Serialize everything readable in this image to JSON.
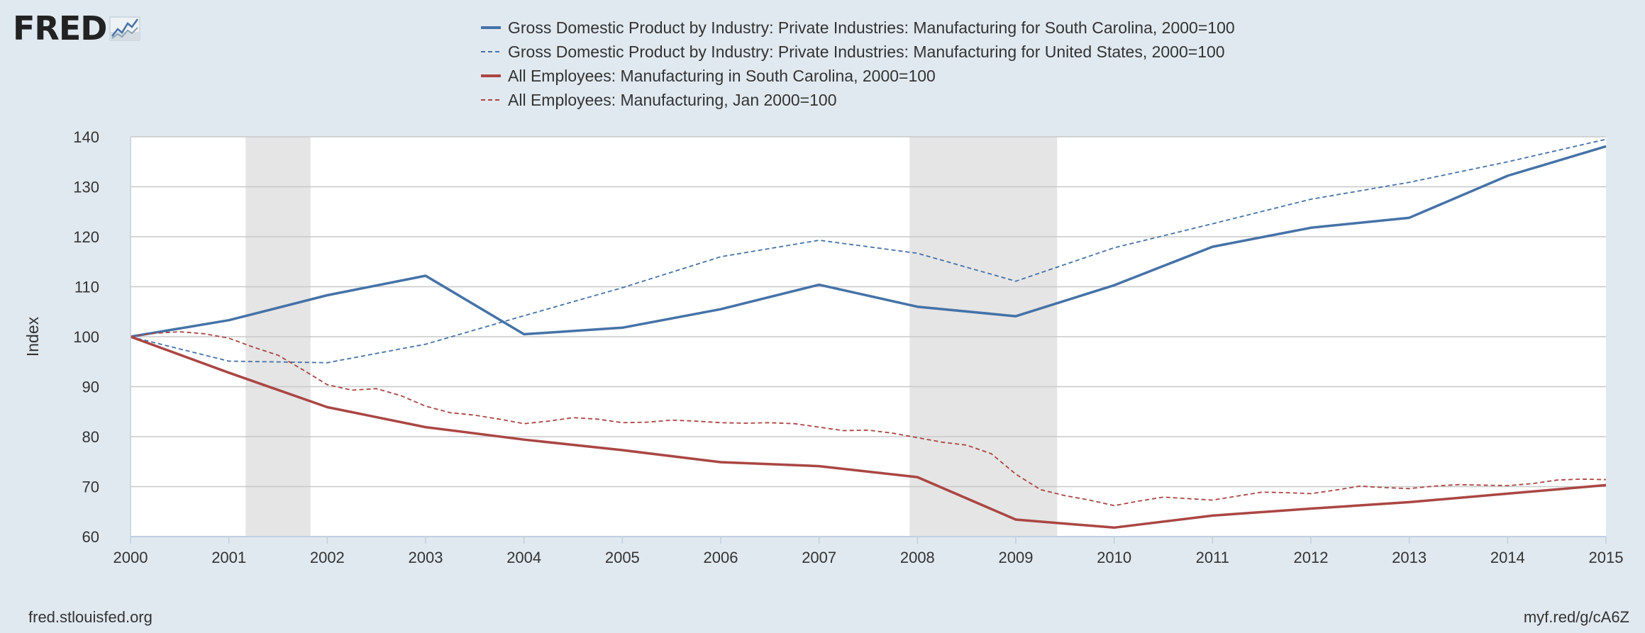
{
  "logo": {
    "text": "FRED"
  },
  "footer": {
    "source": "fred.stlouisfed.org",
    "short_url": "myf.red/g/cA6Z"
  },
  "colors": {
    "blue": "#4572a7",
    "red": "#aa4643",
    "grid": "#c8c8c8",
    "recession": "#e5e5e5",
    "background": "#e1e9f0"
  },
  "chart_data": {
    "type": "line",
    "title": "",
    "xlabel": "",
    "ylabel": "Index",
    "xlim": [
      2000,
      2015
    ],
    "ylim": [
      60,
      140
    ],
    "x_ticks": [
      2000,
      2001,
      2002,
      2003,
      2004,
      2005,
      2006,
      2007,
      2008,
      2009,
      2010,
      2011,
      2012,
      2013,
      2014,
      2015
    ],
    "y_ticks": [
      60,
      70,
      80,
      90,
      100,
      110,
      120,
      130,
      140
    ],
    "grid": true,
    "legend_position": "top-center",
    "recessions": [
      [
        2001.17,
        2001.83
      ],
      [
        2007.92,
        2009.42
      ]
    ],
    "series": [
      {
        "name": "Gross Domestic Product by Industry: Private Industries: Manufacturing for South Carolina, 2000=100",
        "color": "#4572a7",
        "style": "solid",
        "x": [
          2000,
          2001,
          2002,
          2003,
          2004,
          2005,
          2006,
          2007,
          2008,
          2009,
          2010,
          2011,
          2012,
          2013,
          2014,
          2015
        ],
        "values": [
          100,
          103.3,
          108.3,
          112.2,
          100.5,
          101.8,
          105.5,
          110.4,
          106.0,
          104.1,
          110.3,
          118.0,
          121.8,
          123.8,
          132.2,
          138.1
        ]
      },
      {
        "name": "Gross Domestic Product by Industry: Private Industries: Manufacturing for United States, 2000=100",
        "color": "#4572a7",
        "style": "dashed",
        "x": [
          2000,
          2001,
          2002,
          2003,
          2004,
          2005,
          2006,
          2007,
          2008,
          2009,
          2010,
          2011,
          2012,
          2013,
          2014,
          2015
        ],
        "values": [
          100,
          95.1,
          94.8,
          98.5,
          104.2,
          109.8,
          116.0,
          119.3,
          116.7,
          111.1,
          117.8,
          122.6,
          127.5,
          130.9,
          135.0,
          139.5
        ]
      },
      {
        "name": "All Employees: Manufacturing in South Carolina, 2000=100",
        "color": "#aa4643",
        "style": "solid",
        "x": [
          2000,
          2001,
          2002,
          2003,
          2004,
          2005,
          2006,
          2007,
          2008,
          2009,
          2010,
          2011,
          2012,
          2013,
          2014,
          2015
        ],
        "values": [
          100,
          92.8,
          85.9,
          81.9,
          79.4,
          77.3,
          74.9,
          74.1,
          71.9,
          63.4,
          61.8,
          64.2,
          65.6,
          66.9,
          68.6,
          70.3
        ]
      },
      {
        "name": "All Employees: Manufacturing, Jan 2000=100",
        "color": "#aa4643",
        "style": "dashed",
        "x": [
          2000,
          2000.25,
          2000.5,
          2000.75,
          2001,
          2001.25,
          2001.5,
          2001.75,
          2002,
          2002.25,
          2002.5,
          2002.75,
          2003,
          2003.25,
          2003.5,
          2003.75,
          2004,
          2004.25,
          2004.5,
          2004.75,
          2005,
          2005.25,
          2005.5,
          2005.75,
          2006,
          2006.25,
          2006.5,
          2006.75,
          2007,
          2007.25,
          2007.5,
          2007.75,
          2008,
          2008.25,
          2008.5,
          2008.75,
          2009,
          2009.25,
          2009.5,
          2009.75,
          2010,
          2010.25,
          2010.5,
          2010.75,
          2011,
          2011.25,
          2011.5,
          2011.75,
          2012,
          2012.25,
          2012.5,
          2012.75,
          2013,
          2013.25,
          2013.5,
          2013.75,
          2014,
          2014.25,
          2014.5,
          2014.75,
          2015
        ],
        "values": [
          100,
          100.7,
          101.0,
          100.6,
          99.7,
          97.9,
          96.3,
          93.4,
          90.4,
          89.3,
          89.6,
          88.2,
          86.1,
          84.8,
          84.3,
          83.5,
          82.6,
          83.1,
          83.8,
          83.5,
          82.8,
          82.9,
          83.3,
          83.1,
          82.8,
          82.7,
          82.8,
          82.6,
          81.9,
          81.2,
          81.3,
          80.7,
          79.8,
          78.9,
          78.3,
          76.6,
          72.5,
          69.4,
          68.2,
          67.3,
          66.2,
          67.1,
          67.9,
          67.6,
          67.3,
          68.1,
          68.9,
          68.8,
          68.6,
          69.3,
          70.1,
          69.8,
          69.6,
          70.1,
          70.4,
          70.3,
          70.2,
          70.6,
          71.3,
          71.5,
          71.4
        ]
      }
    ]
  }
}
